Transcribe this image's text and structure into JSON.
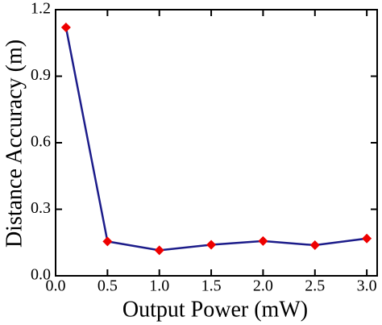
{
  "chart_data": {
    "type": "line",
    "x_label": "Output Power (mW)",
    "y_label": "Distance Accuracy (m)",
    "x": [
      0.1,
      0.5,
      1.0,
      1.5,
      2.0,
      2.5,
      3.0
    ],
    "series": [
      {
        "color": "#1c1c8a",
        "marker_color": "#ee0000",
        "values": [
          1.12,
          0.155,
          0.115,
          0.14,
          0.157,
          0.138,
          0.168
        ]
      }
    ],
    "xlim": [
      0,
      3.1
    ],
    "ylim": [
      0,
      1.2
    ],
    "xticks": [
      {
        "value": 0,
        "label": "0.0"
      },
      0.5,
      {
        "value": 1,
        "label": "1.0"
      },
      1.5,
      {
        "value": 2,
        "label": "2.0"
      },
      2.5,
      {
        "value": 3,
        "label": "3.0"
      }
    ],
    "yticks": [
      {
        "value": 0,
        "label": "0.0"
      },
      0.3,
      0.6,
      0.9,
      1.2
    ]
  }
}
